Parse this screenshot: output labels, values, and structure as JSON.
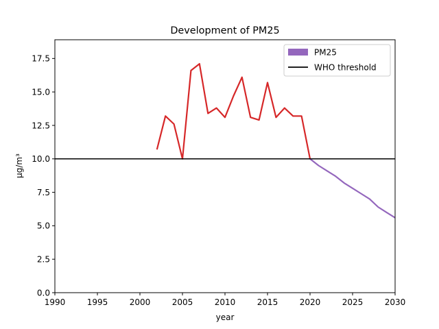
{
  "chart_data": {
    "type": "line",
    "title": "Development of PM25",
    "xlabel": "year",
    "ylabel": "µg/m³",
    "xlim": [
      1990,
      2030
    ],
    "ylim": [
      0,
      18.9
    ],
    "x_ticks": [
      "1990",
      "1995",
      "2000",
      "2005",
      "2010",
      "2015",
      "2020",
      "2025",
      "2030"
    ],
    "y_ticks": [
      "0.0",
      "2.5",
      "5.0",
      "7.5",
      "10.0",
      "12.5",
      "15.0",
      "17.5"
    ],
    "grid": false,
    "legend_position": "top-right",
    "legend": [
      {
        "label": "PM25",
        "color": "#9467bd",
        "marker": "patch"
      },
      {
        "label": "WHO threshold",
        "color": "#000000",
        "marker": "line"
      }
    ],
    "series": [
      {
        "name": "PM25",
        "segment": "historical",
        "color": "#d62728",
        "x": [
          2002,
          2003,
          2004,
          2005,
          2006,
          2007,
          2008,
          2009,
          2010,
          2011,
          2012,
          2013,
          2014,
          2015,
          2016,
          2017,
          2018,
          2019,
          2020
        ],
        "y": [
          10.7,
          13.2,
          12.6,
          10.0,
          16.6,
          17.1,
          13.4,
          13.8,
          13.1,
          14.7,
          16.1,
          13.1,
          12.9,
          15.7,
          13.1,
          13.8,
          13.2,
          13.2,
          10.0
        ]
      },
      {
        "name": "PM25",
        "segment": "projection",
        "color": "#9467bd",
        "x": [
          2020,
          2021,
          2022,
          2023,
          2024,
          2025,
          2026,
          2027,
          2028,
          2029,
          2030
        ],
        "y": [
          10.0,
          9.5,
          9.1,
          8.7,
          8.2,
          7.8,
          7.4,
          7.0,
          6.4,
          6.0,
          5.6
        ]
      }
    ],
    "reference_lines": [
      {
        "name": "WHO threshold",
        "y": 10.0,
        "color": "#000000"
      }
    ]
  }
}
